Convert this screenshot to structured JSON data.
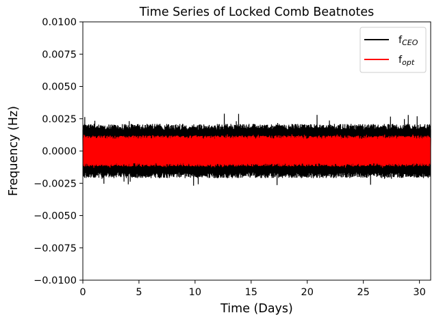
{
  "chart_data": {
    "type": "line",
    "title": "Time Series of Locked Comb Beatnotes",
    "xlabel": "Time (Days)",
    "ylabel": "Frequency (Hz)",
    "xlim": [
      0,
      31
    ],
    "ylim": [
      -0.01,
      0.01
    ],
    "grid": false,
    "legend_position": "top-right",
    "x_ticks": [
      {
        "value": 0,
        "label": "0"
      },
      {
        "value": 5,
        "label": "5"
      },
      {
        "value": 10,
        "label": "10"
      },
      {
        "value": 15,
        "label": "15"
      },
      {
        "value": 20,
        "label": "20"
      },
      {
        "value": 25,
        "label": "25"
      },
      {
        "value": 30,
        "label": "30"
      }
    ],
    "y_ticks": [
      {
        "value": 0.01,
        "label": "0.0100"
      },
      {
        "value": 0.0075,
        "label": "0.0075"
      },
      {
        "value": 0.005,
        "label": "0.0050"
      },
      {
        "value": 0.0025,
        "label": "0.0025"
      },
      {
        "value": 0.0,
        "label": "0.0000"
      },
      {
        "value": -0.0025,
        "label": "−0.0025"
      },
      {
        "value": -0.005,
        "label": "−0.0050"
      },
      {
        "value": -0.0075,
        "label": "−0.0075"
      },
      {
        "value": -0.01,
        "label": "−0.0100"
      }
    ],
    "series": [
      {
        "name_base": "f",
        "name_sub": "CEO",
        "color": "#000000",
        "x_range": [
          0,
          31
        ],
        "typical_band": [
          -0.0021,
          0.0021
        ],
        "extremes": [
          -0.0027,
          0.0029
        ]
      },
      {
        "name_base": "f",
        "name_sub": "opt",
        "color": "#ff0000",
        "x_range": [
          0,
          31
        ],
        "typical_band": [
          -0.0012,
          0.0012
        ],
        "extremes": [
          -0.0013,
          0.0013
        ]
      }
    ]
  }
}
